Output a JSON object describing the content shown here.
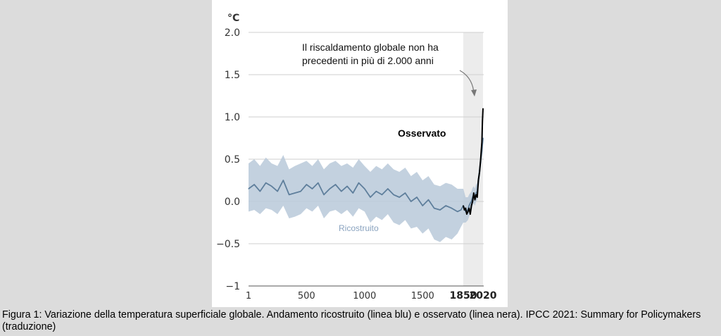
{
  "chart_data": {
    "type": "line",
    "ylabel": "°C",
    "ylim": [
      -1,
      2
    ],
    "xlim": [
      1,
      2020
    ],
    "y_ticks": [
      "2.0",
      "1.5",
      "1.0",
      "0.5",
      "0.0",
      "−0.5",
      "−1"
    ],
    "y_tick_values": [
      2.0,
      1.5,
      1.0,
      0.5,
      0.0,
      -0.5,
      -1.0
    ],
    "x_ticks": [
      "1",
      "500",
      "1000",
      "1500",
      "1850",
      "2020"
    ],
    "x_tick_values": [
      1,
      500,
      1000,
      1500,
      1850,
      2020
    ],
    "x_ticks_bold": [
      false,
      false,
      false,
      false,
      true,
      true
    ],
    "grid": "horizontal",
    "shaded_period": [
      1850,
      2020
    ],
    "annotation": {
      "lines": [
        "Il riscaldamento globale non ha",
        "precedenti in più di 2.000 anni"
      ]
    },
    "series": [
      {
        "name": "Ricostruito",
        "color": "#5f7f9c",
        "band_color": "#b9c9d9",
        "x": [
          1,
          50,
          100,
          150,
          200,
          250,
          300,
          350,
          400,
          450,
          500,
          550,
          600,
          650,
          700,
          750,
          800,
          850,
          900,
          950,
          1000,
          1050,
          1100,
          1150,
          1200,
          1250,
          1300,
          1350,
          1400,
          1450,
          1500,
          1550,
          1600,
          1650,
          1700,
          1750,
          1800,
          1830,
          1850,
          1870,
          1890,
          1900,
          1910,
          1920,
          1930,
          1940,
          1950,
          1960,
          1970,
          1980,
          1990,
          2000,
          2010,
          2020
        ],
        "values": [
          0.15,
          0.2,
          0.12,
          0.22,
          0.18,
          0.12,
          0.25,
          0.08,
          0.1,
          0.12,
          0.2,
          0.15,
          0.22,
          0.08,
          0.15,
          0.2,
          0.12,
          0.18,
          0.1,
          0.22,
          0.15,
          0.05,
          0.12,
          0.08,
          0.15,
          0.08,
          0.05,
          0.1,
          0.0,
          0.05,
          -0.05,
          0.02,
          -0.08,
          -0.1,
          -0.05,
          -0.08,
          -0.12,
          -0.1,
          -0.05,
          -0.12,
          -0.1,
          -0.05,
          -0.02,
          0.0,
          0.05,
          0.08,
          0.05,
          0.1,
          0.12,
          0.25,
          0.35,
          0.5,
          0.6,
          0.75
        ],
        "upper": [
          0.45,
          0.5,
          0.42,
          0.52,
          0.45,
          0.42,
          0.55,
          0.38,
          0.42,
          0.45,
          0.48,
          0.42,
          0.5,
          0.38,
          0.45,
          0.48,
          0.42,
          0.45,
          0.4,
          0.5,
          0.42,
          0.35,
          0.42,
          0.38,
          0.45,
          0.38,
          0.35,
          0.4,
          0.3,
          0.35,
          0.25,
          0.3,
          0.2,
          0.18,
          0.22,
          0.2,
          0.15,
          0.15,
          0.15,
          0.05,
          0.05,
          0.08,
          0.1,
          0.12,
          0.16,
          0.18,
          0.15,
          0.2,
          0.22,
          0.35,
          0.45,
          0.6,
          0.7,
          0.85
        ],
        "lower": [
          -0.12,
          -0.1,
          -0.15,
          -0.08,
          -0.1,
          -0.15,
          -0.05,
          -0.2,
          -0.18,
          -0.15,
          -0.08,
          -0.12,
          -0.05,
          -0.2,
          -0.12,
          -0.1,
          -0.15,
          -0.1,
          -0.18,
          -0.08,
          -0.12,
          -0.25,
          -0.18,
          -0.22,
          -0.15,
          -0.25,
          -0.28,
          -0.22,
          -0.32,
          -0.3,
          -0.38,
          -0.32,
          -0.45,
          -0.48,
          -0.42,
          -0.45,
          -0.38,
          -0.3,
          -0.25,
          -0.25,
          -0.22,
          -0.18,
          -0.14,
          -0.12,
          -0.06,
          -0.02,
          -0.05,
          0.0,
          0.02,
          0.15,
          0.25,
          0.4,
          0.5,
          0.65
        ]
      },
      {
        "name": "Osservato",
        "color": "#000000",
        "x": [
          1850,
          1860,
          1870,
          1880,
          1890,
          1900,
          1910,
          1920,
          1930,
          1940,
          1950,
          1960,
          1970,
          1980,
          1990,
          2000,
          2005,
          2010,
          2015,
          2020
        ],
        "values": [
          -0.05,
          -0.1,
          -0.08,
          -0.15,
          -0.12,
          -0.08,
          -0.15,
          -0.05,
          0.0,
          0.1,
          0.02,
          0.08,
          0.05,
          0.25,
          0.35,
          0.5,
          0.6,
          0.7,
          0.95,
          1.1
        ]
      }
    ]
  },
  "caption": "Figura 1: Variazione della temperatura superficiale globale. Andamento ricostruito (linea blu) e osservato (linea nera). IPCC 2021: Summary for Policymakers (traduzione)"
}
